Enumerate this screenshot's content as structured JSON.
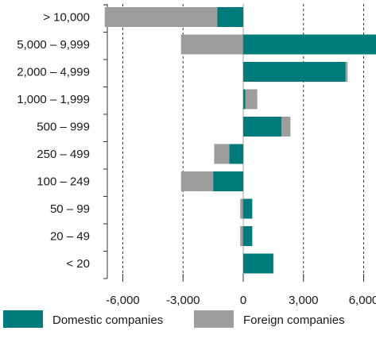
{
  "chart_data": {
    "type": "bar",
    "orientation": "horizontal",
    "stacked": true,
    "categories": [
      "> 10,000",
      "5,000 – 9,999",
      "2,000 – 4,999",
      "1,000 – 1,999",
      "500 – 999",
      "250 – 499",
      "100 – 249",
      "50 – 99",
      "20 – 49",
      "<  20"
    ],
    "series": [
      {
        "name": "Domestic companies",
        "color": "#007b7c",
        "values": [
          -1300,
          6800,
          5100,
          100,
          1900,
          -700,
          -1500,
          450,
          450,
          1500
        ]
      },
      {
        "name": "Foreign companies",
        "color": "#9d9d9d",
        "values": [
          -5600,
          -3100,
          100,
          600,
          450,
          -750,
          -1600,
          -150,
          -150,
          0
        ]
      }
    ],
    "x_ticks": [
      -6000,
      -3000,
      0,
      3000,
      6000
    ],
    "x_tick_labels": [
      "-6,000",
      "-3,000",
      "0",
      "3,000",
      "6,000"
    ],
    "xlim": [
      -7400,
      6900
    ],
    "grid": "vertical dashed",
    "legend": "bottom"
  }
}
